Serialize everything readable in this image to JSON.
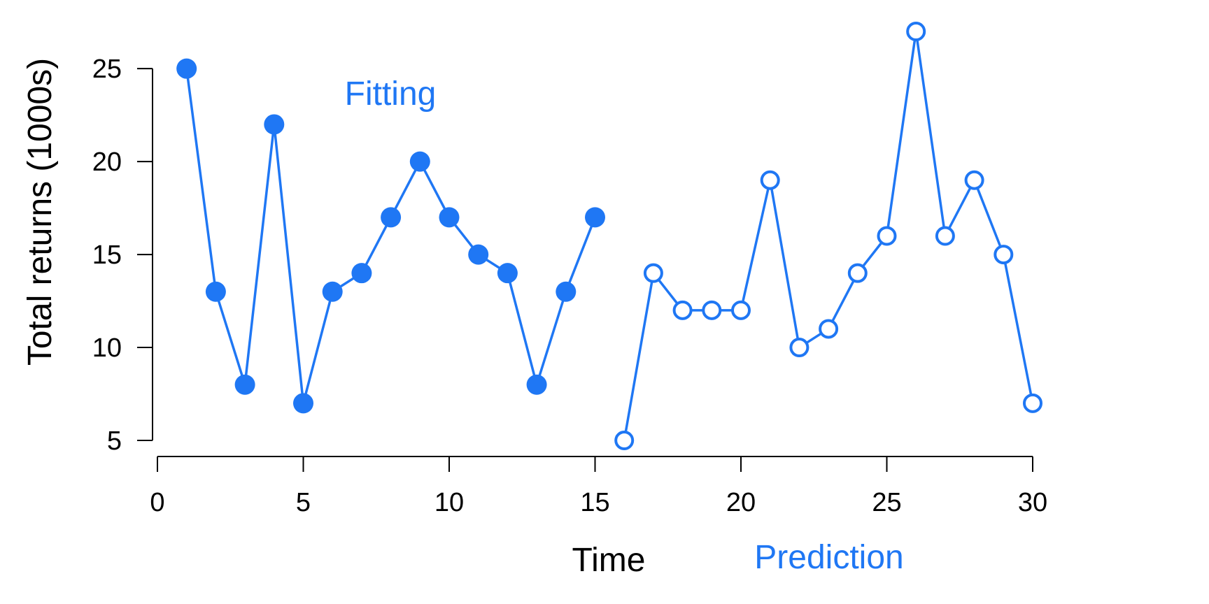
{
  "chart_data": {
    "type": "line",
    "title": "",
    "xlabel": "Time",
    "ylabel": "Total returns (1000s)",
    "xlim": [
      0,
      30
    ],
    "ylim": [
      5,
      27
    ],
    "xticks": [
      0,
      5,
      10,
      15,
      20,
      25,
      30
    ],
    "yticks": [
      5,
      10,
      15,
      20,
      25
    ],
    "grid": false,
    "color": "#1f77f4",
    "annotations": [
      {
        "text": "Fitting",
        "series": "fitting"
      },
      {
        "text": "Prediction",
        "series": "prediction"
      }
    ],
    "series": [
      {
        "key": "fitting",
        "marker": "filled-circle",
        "x": [
          1,
          2,
          3,
          4,
          5,
          6,
          7,
          8,
          9,
          10,
          11,
          12,
          13,
          14,
          15
        ],
        "y": [
          25,
          13,
          8,
          22,
          7,
          13,
          14,
          17,
          20,
          17,
          15,
          14,
          8,
          13,
          17
        ]
      },
      {
        "key": "prediction",
        "marker": "open-circle",
        "x": [
          16,
          17,
          18,
          19,
          20,
          21,
          22,
          23,
          24,
          25,
          26,
          27,
          28,
          29,
          30
        ],
        "y": [
          5,
          14,
          12,
          12,
          12,
          19,
          10,
          11,
          14,
          16,
          27,
          16,
          19,
          15,
          7
        ]
      }
    ]
  }
}
